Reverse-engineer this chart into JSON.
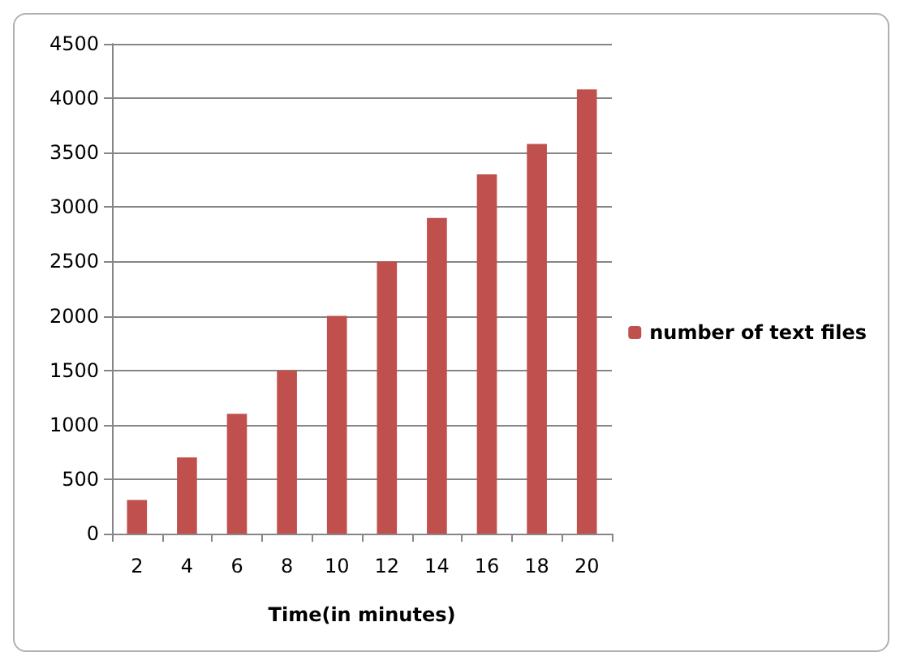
{
  "chart_data": {
    "type": "bar",
    "xlabel": "Time(in minutes)",
    "categories": [
      "2",
      "4",
      "6",
      "8",
      "10",
      "12",
      "14",
      "16",
      "18",
      "20"
    ],
    "series": [
      {
        "name": "number of text files",
        "color": "#c0504d",
        "values": [
          310,
          700,
          1100,
          1500,
          2000,
          2500,
          2900,
          3300,
          3580,
          4080
        ]
      }
    ],
    "ylim": [
      0,
      4500
    ],
    "yticks": [
      0,
      500,
      1000,
      1500,
      2000,
      2500,
      3000,
      3500,
      4000,
      4500
    ],
    "grid": "y",
    "legend": "right"
  }
}
